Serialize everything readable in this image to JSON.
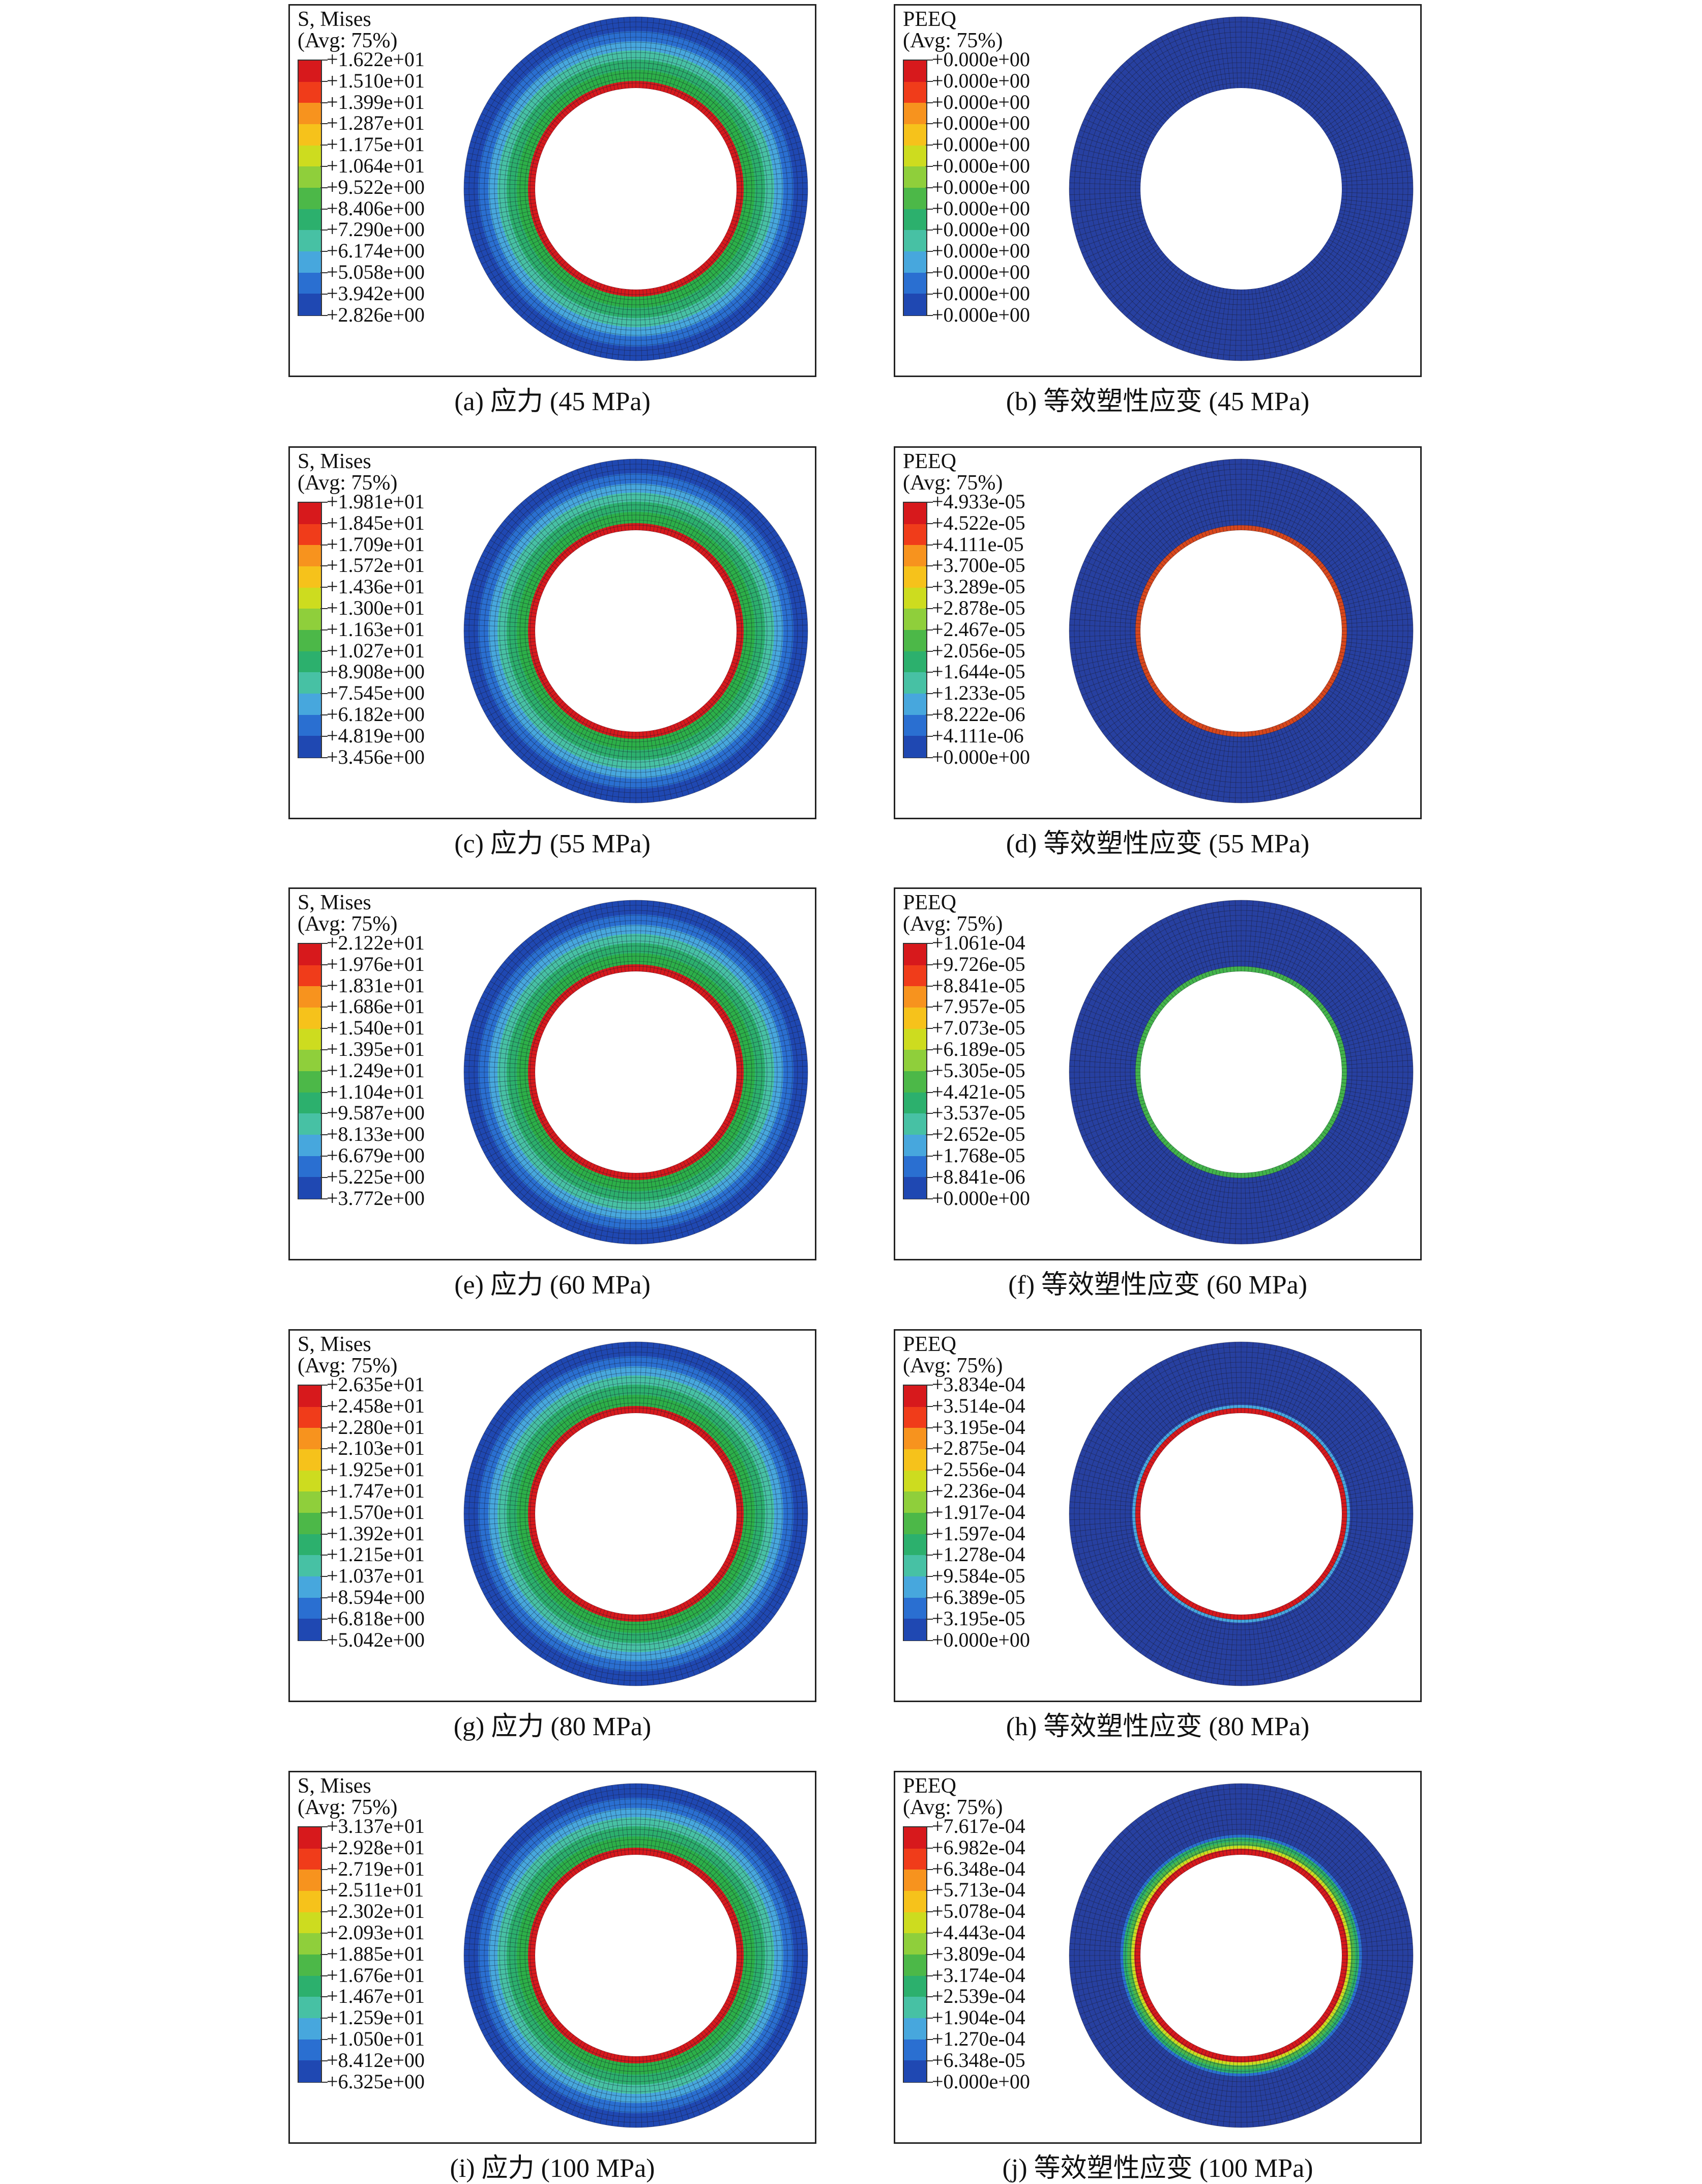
{
  "figure": {
    "panels": [
      {
        "title": "S, Mises",
        "subtitle": "(Avg: 75%)",
        "caption": "(a) 应力 (45 MPa)",
        "legend": [
          "+1.622e+01",
          "+1.510e+01",
          "+1.399e+01",
          "+1.287e+01",
          "+1.175e+01",
          "+1.064e+01",
          "+9.522e+00",
          "+8.406e+00",
          "+7.290e+00",
          "+6.174e+00",
          "+5.058e+00",
          "+3.942e+00",
          "+2.826e+00"
        ]
      },
      {
        "title": "PEEQ",
        "subtitle": "(Avg: 75%)",
        "caption": "(b) 等效塑性应变 (45 MPa)",
        "legend": [
          "+0.000e+00",
          "+0.000e+00",
          "+0.000e+00",
          "+0.000e+00",
          "+0.000e+00",
          "+0.000e+00",
          "+0.000e+00",
          "+0.000e+00",
          "+0.000e+00",
          "+0.000e+00",
          "+0.000e+00",
          "+0.000e+00",
          "+0.000e+00"
        ]
      },
      {
        "title": "S, Mises",
        "subtitle": "(Avg: 75%)",
        "caption": "(c) 应力 (55 MPa)",
        "legend": [
          "+1.981e+01",
          "+1.845e+01",
          "+1.709e+01",
          "+1.572e+01",
          "+1.436e+01",
          "+1.300e+01",
          "+1.163e+01",
          "+1.027e+01",
          "+8.908e+00",
          "+7.545e+00",
          "+6.182e+00",
          "+4.819e+00",
          "+3.456e+00"
        ]
      },
      {
        "title": "PEEQ",
        "subtitle": "(Avg: 75%)",
        "caption": "(d) 等效塑性应变 (55 MPa)",
        "legend": [
          "+4.933e-05",
          "+4.522e-05",
          "+4.111e-05",
          "+3.700e-05",
          "+3.289e-05",
          "+2.878e-05",
          "+2.467e-05",
          "+2.056e-05",
          "+1.644e-05",
          "+1.233e-05",
          "+8.222e-06",
          "+4.111e-06",
          "+0.000e+00"
        ]
      },
      {
        "title": "S, Mises",
        "subtitle": "(Avg: 75%)",
        "caption": "(e) 应力 (60 MPa)",
        "legend": [
          "+2.122e+01",
          "+1.976e+01",
          "+1.831e+01",
          "+1.686e+01",
          "+1.540e+01",
          "+1.395e+01",
          "+1.249e+01",
          "+1.104e+01",
          "+9.587e+00",
          "+8.133e+00",
          "+6.679e+00",
          "+5.225e+00",
          "+3.772e+00"
        ]
      },
      {
        "title": "PEEQ",
        "subtitle": "(Avg: 75%)",
        "caption": "(f) 等效塑性应变 (60 MPa)",
        "legend": [
          "+1.061e-04",
          "+9.726e-05",
          "+8.841e-05",
          "+7.957e-05",
          "+7.073e-05",
          "+6.189e-05",
          "+5.305e-05",
          "+4.421e-05",
          "+3.537e-05",
          "+2.652e-05",
          "+1.768e-05",
          "+8.841e-06",
          "+0.000e+00"
        ]
      },
      {
        "title": "S, Mises",
        "subtitle": "(Avg: 75%)",
        "caption": "(g) 应力 (80 MPa)",
        "legend": [
          "+2.635e+01",
          "+2.458e+01",
          "+2.280e+01",
          "+2.103e+01",
          "+1.925e+01",
          "+1.747e+01",
          "+1.570e+01",
          "+1.392e+01",
          "+1.215e+01",
          "+1.037e+01",
          "+8.594e+00",
          "+6.818e+00",
          "+5.042e+00"
        ]
      },
      {
        "title": "PEEQ",
        "subtitle": "(Avg: 75%)",
        "caption": "(h) 等效塑性应变 (80 MPa)",
        "legend": [
          "+3.834e-04",
          "+3.514e-04",
          "+3.195e-04",
          "+2.875e-04",
          "+2.556e-04",
          "+2.236e-04",
          "+1.917e-04",
          "+1.597e-04",
          "+1.278e-04",
          "+9.584e-05",
          "+6.389e-05",
          "+3.195e-05",
          "+0.000e+00"
        ]
      },
      {
        "title": "S, Mises",
        "subtitle": "(Avg: 75%)",
        "caption": "(i) 应力 (100 MPa)",
        "legend": [
          "+3.137e+01",
          "+2.928e+01",
          "+2.719e+01",
          "+2.511e+01",
          "+2.302e+01",
          "+2.093e+01",
          "+1.885e+01",
          "+1.676e+01",
          "+1.467e+01",
          "+1.259e+01",
          "+1.050e+01",
          "+8.412e+00",
          "+6.325e+00"
        ]
      },
      {
        "title": "PEEQ",
        "subtitle": "(Avg: 75%)",
        "caption": "(j) 等效塑性应变 (100 MPa)",
        "legend": [
          "+7.617e-04",
          "+6.982e-04",
          "+6.348e-04",
          "+5.713e-04",
          "+5.078e-04",
          "+4.443e-04",
          "+3.809e-04",
          "+3.174e-04",
          "+2.539e-04",
          "+1.904e-04",
          "+1.270e-04",
          "+6.348e-05",
          "+0.000e+00"
        ]
      }
    ],
    "legend_colors": [
      "#d7191c",
      "#f03c1a",
      "#f7931e",
      "#f6c21b",
      "#cddc1f",
      "#8fcf3b",
      "#4cb848",
      "#2cb06d",
      "#47c1a4",
      "#47a7dd",
      "#2a6fd1",
      "#1f48b2",
      "#2740a0"
    ],
    "ring_colors": {
      "mises": [
        "#d7191c",
        "#2cb048",
        "#2cb06d",
        "#47c1a4",
        "#47a7dd",
        "#2a6fd1",
        "#1f48b2"
      ],
      "peeq_45": [
        "#2740a0"
      ],
      "peeq_55": [
        "#d8471c",
        "#2740a0"
      ],
      "peeq_60": [
        "#43b44b",
        "#2740a0"
      ],
      "peeq_80": [
        "#d7191c",
        "#47a7dd",
        "#2740a0"
      ],
      "peeq_100": [
        "#d7191c",
        "#cddc1f",
        "#4cb848",
        "#2cb06d",
        "#2a6fd1",
        "#2740a0"
      ]
    }
  }
}
